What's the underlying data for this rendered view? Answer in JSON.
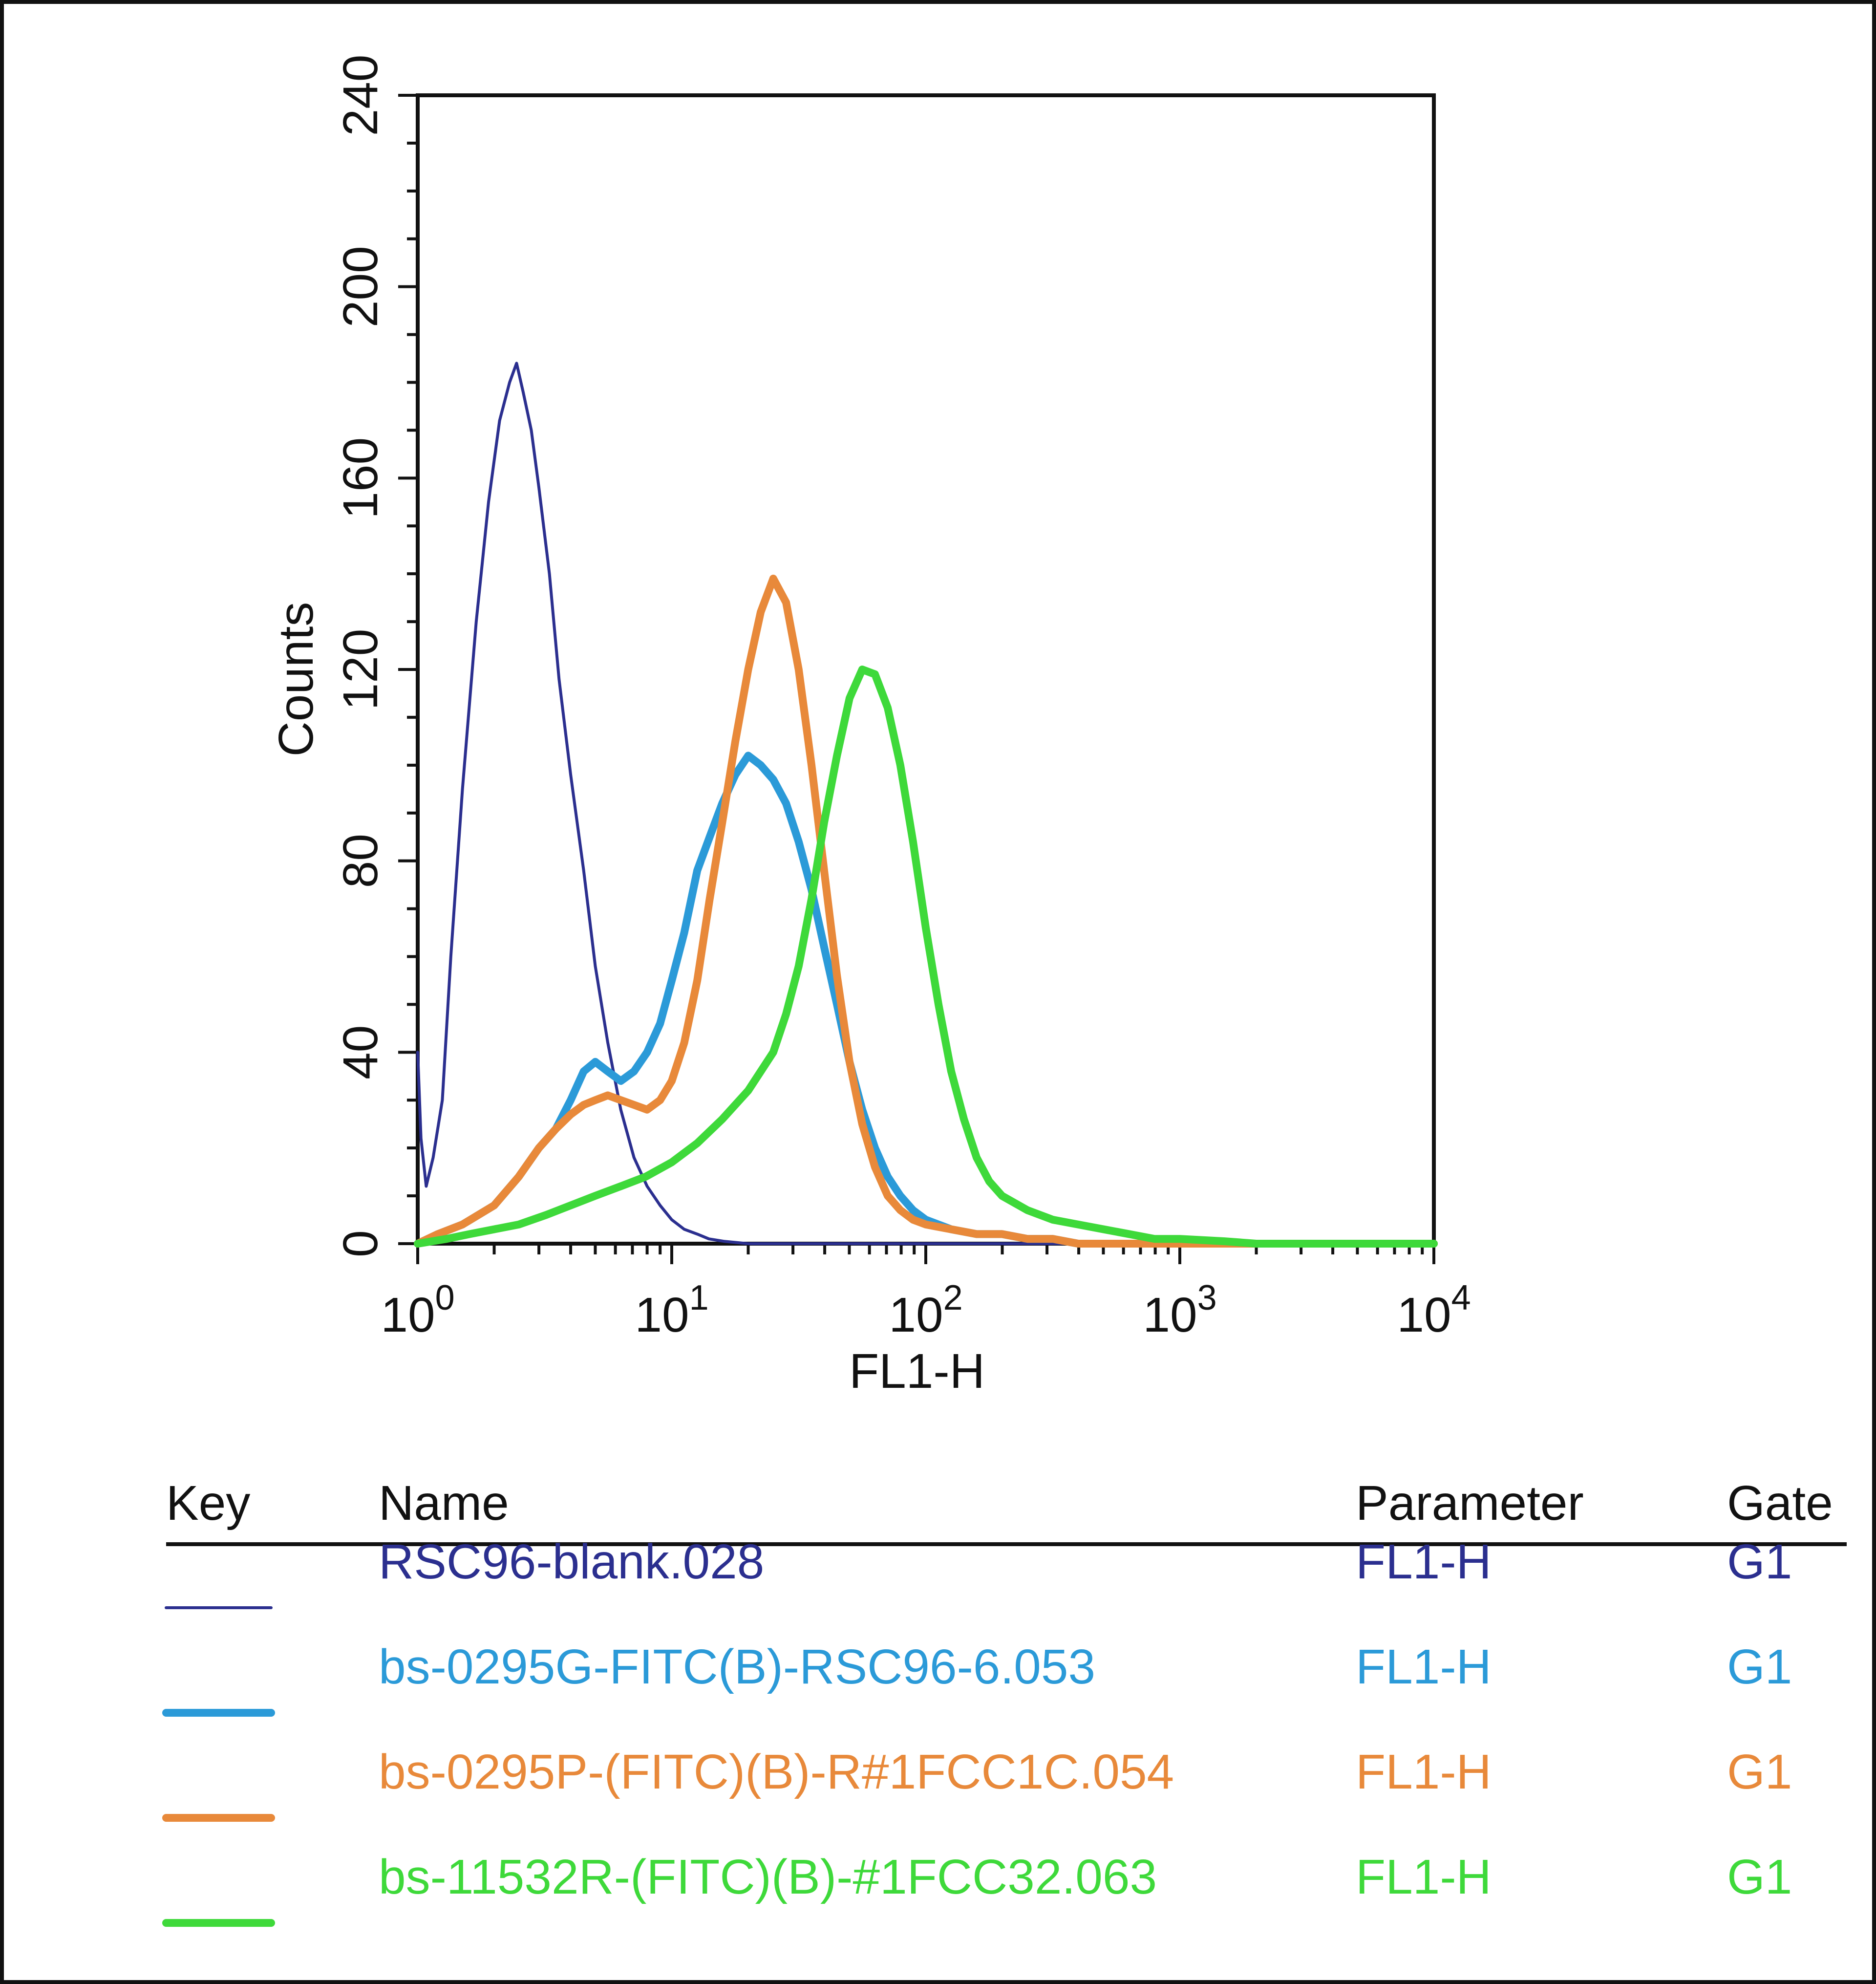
{
  "chart_data": {
    "type": "line",
    "title": "",
    "xlabel": "FL1-H",
    "ylabel": "Counts",
    "xscale": "log",
    "xlim": [
      1,
      10000
    ],
    "ylim": [
      0,
      240
    ],
    "x_ticks": [
      {
        "value": 1,
        "base": "10",
        "exp": "0"
      },
      {
        "value": 10,
        "base": "10",
        "exp": "1"
      },
      {
        "value": 100,
        "base": "10",
        "exp": "2"
      },
      {
        "value": 1000,
        "base": "10",
        "exp": "3"
      },
      {
        "value": 10000,
        "base": "10",
        "exp": "4"
      }
    ],
    "y_ticks": [
      "0",
      "40",
      "80",
      "120",
      "160",
      "200",
      "240"
    ],
    "series": [
      {
        "name": "RSC96-blank.028",
        "color": "#2b2f8f",
        "x": [
          1.0,
          1.03,
          1.08,
          1.15,
          1.25,
          1.35,
          1.5,
          1.7,
          1.9,
          2.1,
          2.3,
          2.45,
          2.6,
          2.8,
          3.0,
          3.3,
          3.6,
          4.0,
          4.5,
          5.0,
          5.6,
          6.3,
          7.1,
          8.0,
          9.0,
          10.0,
          11.2,
          12.6,
          14.0,
          16.0,
          20.0,
          30.0,
          100.0,
          10000.0
        ],
        "y": [
          40,
          22,
          12,
          18,
          30,
          60,
          95,
          130,
          155,
          172,
          180,
          184,
          178,
          170,
          158,
          140,
          118,
          98,
          78,
          58,
          42,
          28,
          18,
          12,
          8,
          5,
          3,
          2,
          1,
          0.5,
          0,
          0,
          0,
          0
        ]
      },
      {
        "name": "bs-0295G-FITC(B)-RSC96-6.053",
        "color": "#2b9ad8",
        "x": [
          1.0,
          1.2,
          1.5,
          2.0,
          2.5,
          3.0,
          3.5,
          4.0,
          4.5,
          5.0,
          5.6,
          6.3,
          7.1,
          8.0,
          9.0,
          10.0,
          11.2,
          12.6,
          14.1,
          15.8,
          17.8,
          20.0,
          22.4,
          25.1,
          28.2,
          31.6,
          35.5,
          39.8,
          44.7,
          50.1,
          56.2,
          63.1,
          70.8,
          79.4,
          89.1,
          100.0,
          125.9,
          158.5,
          199.5,
          251.2,
          316.2,
          398.1,
          501.2,
          1000.0,
          10000.0
        ],
        "y": [
          0,
          2,
          4,
          8,
          14,
          20,
          24,
          30,
          36,
          38,
          36,
          34,
          36,
          40,
          46,
          55,
          65,
          78,
          85,
          92,
          98,
          102,
          100,
          97,
          92,
          84,
          74,
          62,
          50,
          38,
          28,
          20,
          14,
          10,
          7,
          5,
          3,
          2,
          2,
          1,
          1,
          0,
          0,
          0,
          0
        ]
      },
      {
        "name": "bs-0295P-(FITC)(B)-R#1FCC1C.054",
        "color": "#e8893a",
        "x": [
          1.0,
          1.2,
          1.5,
          2.0,
          2.5,
          3.0,
          3.5,
          4.0,
          4.5,
          5.0,
          5.6,
          6.3,
          7.1,
          8.0,
          9.0,
          10.0,
          11.2,
          12.6,
          14.1,
          15.8,
          17.8,
          20.0,
          22.4,
          25.1,
          28.2,
          31.6,
          35.5,
          39.8,
          44.7,
          50.1,
          56.2,
          63.1,
          70.8,
          79.4,
          89.1,
          100.0,
          125.9,
          158.5,
          199.5,
          251.2,
          316.2,
          398.1,
          501.2,
          1000.0,
          10000.0
        ],
        "y": [
          0,
          2,
          4,
          8,
          14,
          20,
          24,
          27,
          29,
          30,
          31,
          30,
          29,
          28,
          30,
          34,
          42,
          55,
          72,
          88,
          105,
          120,
          132,
          139,
          134,
          120,
          100,
          78,
          56,
          38,
          25,
          16,
          10,
          7,
          5,
          4,
          3,
          2,
          2,
          1,
          1,
          0,
          0,
          0,
          0
        ]
      },
      {
        "name": "bs-11532R-(FITC)(B)-#1FCC32.063",
        "color": "#3ed93a",
        "x": [
          1.0,
          1.3,
          1.6,
          2.0,
          2.5,
          3.2,
          4.0,
          5.0,
          6.3,
          7.9,
          10.0,
          12.6,
          15.8,
          20.0,
          25.1,
          28.2,
          31.6,
          35.5,
          39.8,
          44.7,
          50.1,
          56.2,
          63.1,
          70.8,
          79.4,
          89.1,
          100.0,
          112.2,
          125.9,
          141.3,
          158.5,
          177.8,
          199.5,
          251.2,
          316.2,
          398.1,
          501.2,
          631.0,
          794.3,
          1000.0,
          1500.0,
          2000.0,
          10000.0
        ],
        "y": [
          0,
          1,
          2,
          3,
          4,
          6,
          8,
          10,
          12,
          14,
          17,
          21,
          26,
          32,
          40,
          48,
          58,
          72,
          88,
          102,
          114,
          120,
          119,
          112,
          100,
          84,
          66,
          50,
          36,
          26,
          18,
          13,
          10,
          7,
          5,
          4,
          3,
          2,
          1,
          1,
          0.5,
          0,
          0
        ]
      }
    ],
    "legend": {
      "placement": "bottom",
      "headers": {
        "key": "Key",
        "name": "Name",
        "parameter": "Parameter",
        "gate": "Gate"
      },
      "rows": [
        {
          "name": "RSC96-blank.028",
          "parameter": "FL1-H",
          "gate": "G1",
          "color": "#2b2f8f"
        },
        {
          "name": "bs-0295G-FITC(B)-RSC96-6.053",
          "parameter": "FL1-H",
          "gate": "G1",
          "color": "#2b9ad8"
        },
        {
          "name": "bs-0295P-(FITC)(B)-R#1FCC1C.054",
          "parameter": "FL1-H",
          "gate": "G1",
          "color": "#e8893a"
        },
        {
          "name": "bs-11532R-(FITC)(B)-#1FCC32.063",
          "parameter": "FL1-H",
          "gate": "G1",
          "color": "#3ed93a"
        }
      ]
    }
  }
}
